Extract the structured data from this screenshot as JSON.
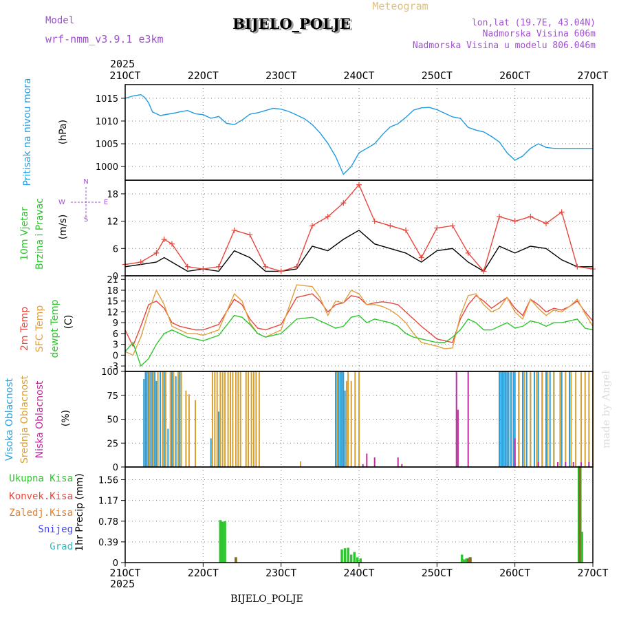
{
  "header": {
    "model_label": "Model",
    "model_name": "wrf-nmm_v3.9.1  e3km",
    "title": "BIJELO_POLJE",
    "subtitle": "Meteogram",
    "lonlat": "lon,lat (19.7E, 43.04N)",
    "elevation": "Nadmorska Visina 606m",
    "model_elevation": "Nadmorska Visina u modelu 806.046m",
    "credit": "made by Angel",
    "footer_station": "BIJELO_POLJE",
    "year": "2025"
  },
  "colors": {
    "pressure": "#1f9be0",
    "temp2m": "#e8453c",
    "sfctemp": "#e0a040",
    "dewpoint": "#2ec52e",
    "wind_speed": "#000000",
    "gust": "#e8453c",
    "high_cloud": "#2a9fd8",
    "mid_cloud": "#d9a030",
    "low_cloud": "#c02ca0",
    "precip_total": "#2ec52e",
    "precip_conv": "#e8453c",
    "precip_frozen": "#e08030",
    "snow": "#4040ff",
    "graupel": "#30c0c0",
    "purple_text": "#a050d0",
    "orange_text": "#e0c080"
  },
  "chart_data": [
    {
      "type": "line",
      "panel": "pressure",
      "ylabel_main": "Pritisak na nivou mora",
      "ylabel_unit": "(hPa)",
      "ylim": [
        997,
        1018
      ],
      "yticks": [
        1000,
        1005,
        1010,
        1015
      ],
      "ytick_labels": [
        "1000",
        "1005",
        "1010",
        "1015"
      ],
      "series": [
        {
          "name": "Pritisak na nivou mora",
          "x": [
            0,
            0.1,
            0.2,
            0.25,
            0.3,
            0.35,
            0.45,
            0.55,
            0.65,
            0.7,
            0.8,
            0.9,
            1.0,
            1.1,
            1.15,
            1.2,
            1.3,
            1.4,
            1.5,
            1.6,
            1.7,
            1.8,
            1.9,
            2.0,
            2.1,
            2.2,
            2.3,
            2.4,
            2.5,
            2.6,
            2.7,
            2.8,
            2.9,
            3.0,
            3.1,
            3.2,
            3.3,
            3.4,
            3.5,
            3.6,
            3.7,
            3.8,
            3.9,
            4.0,
            4.1,
            4.2,
            4.3,
            4.4,
            4.5,
            4.6,
            4.7,
            4.8,
            4.9,
            5.0,
            5.1,
            5.2,
            5.3,
            5.4,
            5.5,
            5.6,
            5.7,
            5.8,
            5.9,
            6.0
          ],
          "values": [
            1015,
            1015.5,
            1015.8,
            1015.2,
            1014,
            1012,
            1011.2,
            1011.5,
            1011.8,
            1012,
            1012.3,
            1011.6,
            1011.4,
            1010.6,
            1010.8,
            1011,
            1009.5,
            1009.2,
            1010.2,
            1011.5,
            1011.8,
            1012.3,
            1012.8,
            1012.6,
            1012.1,
            1011.3,
            1010.5,
            1009.2,
            1007.4,
            1005.1,
            1002.2,
            998.3,
            1000,
            1003,
            1004,
            1005,
            1007,
            1008.7,
            1009.4,
            1010.8,
            1012.4,
            1012.9,
            1013,
            1012.5,
            1011.7,
            1010.9,
            1010.6,
            1008.6,
            1008,
            1007.6,
            1006.6,
            1005.4,
            1003,
            1001.4,
            1002.3,
            1004,
            1005,
            1004.2,
            1004,
            1004,
            1004,
            1004,
            1004,
            1004
          ]
        }
      ]
    },
    {
      "type": "line",
      "panel": "wind",
      "ylabel_main": "10m Vjetar",
      "ylabel_sub": "Brzina i Pravac",
      "ylabel_unit": "(m/s)",
      "compass": {
        "n": "N",
        "w": "W",
        "e": "E",
        "s": "S"
      },
      "ylim": [
        0,
        21
      ],
      "yticks": [
        0,
        6,
        12,
        18
      ],
      "ytick_labels": [
        "0",
        "6",
        "12",
        "18"
      ],
      "series": [
        {
          "name": "Brzina",
          "x": [
            0,
            0.2,
            0.4,
            0.5,
            0.6,
            0.8,
            1.0,
            1.2,
            1.4,
            1.6,
            1.8,
            2.0,
            2.2,
            2.4,
            2.6,
            2.8,
            3.0,
            3.2,
            3.4,
            3.6,
            3.8,
            4.0,
            4.2,
            4.4,
            4.6,
            4.8,
            5.0,
            5.2,
            5.4,
            5.6,
            5.8,
            6.0
          ],
          "values": [
            2,
            2.5,
            3,
            4,
            3,
            1,
            1.5,
            1,
            5.5,
            4,
            1,
            1,
            1.5,
            6.5,
            5.5,
            8,
            10,
            7,
            6,
            5,
            3,
            5.5,
            6,
            3,
            1,
            6.5,
            5,
            6.5,
            6,
            3.5,
            2,
            2
          ]
        },
        {
          "name": "Udari",
          "x": [
            0,
            0.2,
            0.4,
            0.5,
            0.6,
            0.8,
            1.0,
            1.2,
            1.4,
            1.6,
            1.8,
            2.0,
            2.2,
            2.4,
            2.6,
            2.8,
            3.0,
            3.2,
            3.4,
            3.6,
            3.8,
            4.0,
            4.2,
            4.4,
            4.6,
            4.8,
            5.0,
            5.2,
            5.4,
            5.6,
            5.8,
            6.0
          ],
          "values": [
            2.5,
            3,
            5,
            8,
            7,
            2,
            1.5,
            2,
            10,
            9,
            2,
            1,
            2,
            11,
            13,
            16,
            20,
            12,
            11,
            10,
            4,
            10.5,
            11,
            5,
            1,
            13,
            12,
            13,
            11.5,
            14,
            2,
            1.5
          ]
        }
      ]
    },
    {
      "type": "line",
      "panel": "temperature",
      "ylabel_main": "2m Temp",
      "ylabel_sub": "SFC Temp",
      "ylabel_sub2": "dewpt Temp",
      "ylabel_unit": "(C)",
      "ylim": [
        -4.5,
        22
      ],
      "yticks": [
        -3,
        0,
        3,
        6,
        9,
        12,
        15,
        18,
        21
      ],
      "ytick_labels": [
        "-3",
        "0",
        "3",
        "6",
        "9",
        "12",
        "15",
        "18",
        "21"
      ],
      "x": [
        0,
        0.1,
        0.2,
        0.3,
        0.4,
        0.5,
        0.6,
        0.7,
        0.8,
        0.9,
        1.0,
        1.2,
        1.4,
        1.5,
        1.6,
        1.7,
        1.8,
        2.0,
        2.2,
        2.4,
        2.5,
        2.6,
        2.7,
        2.8,
        2.9,
        3.0,
        3.1,
        3.2,
        3.3,
        3.4,
        3.5,
        3.6,
        3.7,
        3.8,
        4.0,
        4.1,
        4.2,
        4.3,
        4.4,
        4.5,
        4.6,
        4.7,
        4.8,
        4.9,
        5.0,
        5.1,
        5.2,
        5.3,
        5.4,
        5.5,
        5.6,
        5.7,
        5.8,
        5.9,
        6.0
      ],
      "series": [
        {
          "name": "2m Temp",
          "values": [
            7,
            2.5,
            8,
            14,
            15,
            13,
            9,
            8,
            7.5,
            7,
            7,
            8.5,
            15.5,
            14,
            10,
            7.5,
            7,
            8.5,
            16,
            17,
            15,
            12,
            14,
            14.5,
            16.5,
            16,
            14,
            14.5,
            14.8,
            14.5,
            14,
            12,
            10,
            8,
            4.5,
            4,
            3.5,
            10,
            14,
            16.5,
            15,
            13,
            14.5,
            16,
            13,
            11,
            15.5,
            14,
            12,
            13,
            12.5,
            13.5,
            15,
            12,
            9.5
          ]
        },
        {
          "name": "SFC Temp",
          "values": [
            1,
            0,
            5,
            12,
            18,
            14,
            8,
            7,
            6,
            6,
            5.5,
            7,
            17,
            15,
            9,
            6,
            5,
            7,
            19.5,
            19,
            16,
            11,
            15,
            14.5,
            18,
            17,
            14,
            14,
            13.5,
            12.5,
            11,
            9,
            6,
            3.5,
            2.5,
            1.8,
            2,
            11,
            16.5,
            17,
            14,
            12,
            13,
            16,
            12,
            10,
            15.5,
            13,
            11,
            12.5,
            12,
            13.5,
            15.5,
            11.5,
            8
          ]
        },
        {
          "name": "dewpt Temp",
          "values": [
            1,
            3.5,
            -3,
            -1,
            3,
            6,
            7,
            6,
            5,
            4.5,
            4,
            5.5,
            11,
            10.5,
            8.5,
            6,
            5,
            6,
            10,
            10.5,
            9.5,
            8.5,
            7.5,
            8,
            10.5,
            11,
            9,
            10,
            9.5,
            9,
            8,
            6,
            5,
            4.5,
            3.5,
            3.5,
            5,
            7,
            10,
            9,
            7,
            7,
            8,
            9,
            7.5,
            8,
            9.5,
            9,
            8,
            9,
            9,
            9.5,
            10,
            7.5,
            7
          ]
        }
      ]
    },
    {
      "type": "bar",
      "panel": "clouds",
      "ylabel_main": "Visoka Oblacnost",
      "ylabel_sub": "Srednja Oblacnost",
      "ylabel_sub2": "Niska Oblacnost",
      "ylabel_unit": "(%)",
      "ylim": [
        0,
        100
      ],
      "yticks": [
        0,
        25,
        50,
        75,
        100
      ],
      "ytick_labels": [
        "0",
        "25",
        "50",
        "75",
        "100"
      ],
      "series": [
        {
          "name": "Visoka Oblacnost",
          "x": [
            0.24,
            0.26,
            0.28,
            0.3,
            0.33,
            0.35,
            0.38,
            0.4,
            0.45,
            0.5,
            0.55,
            0.6,
            0.65,
            0.7,
            1.1,
            1.2,
            2.7,
            2.72,
            2.74,
            2.76,
            2.78,
            2.8,
            2.82,
            4.8,
            4.82,
            4.84,
            4.86,
            4.88,
            4.9,
            4.92,
            4.95,
            4.98,
            5.0,
            5.05,
            5.1,
            5.15,
            5.2,
            5.25,
            5.3,
            5.35,
            5.4,
            5.45,
            5.5,
            5.6,
            5.7
          ],
          "values": [
            92,
            100,
            100,
            100,
            100,
            100,
            100,
            90,
            100,
            100,
            40,
            100,
            95,
            100,
            30,
            58,
            100,
            100,
            100,
            100,
            100,
            100,
            80,
            100,
            100,
            100,
            100,
            100,
            100,
            100,
            100,
            100,
            100,
            100,
            100,
            100,
            100,
            100,
            100,
            100,
            100,
            100,
            100,
            100,
            100
          ]
        },
        {
          "name": "Srednja Oblacnost",
          "x": [
            0.31,
            0.36,
            0.42,
            0.48,
            0.52,
            0.58,
            0.62,
            0.68,
            0.72,
            0.78,
            0.82,
            0.9,
            1.12,
            1.15,
            1.18,
            1.22,
            1.25,
            1.28,
            1.32,
            1.35,
            1.38,
            1.42,
            1.45,
            1.48,
            1.55,
            1.58,
            1.62,
            1.65,
            1.68,
            1.72,
            2.25,
            2.72,
            2.84,
            2.86,
            2.9,
            2.95,
            3.0,
            5.05,
            5.12,
            5.2,
            5.28,
            5.35,
            5.42,
            5.5,
            5.58,
            5.65,
            5.72,
            5.78,
            5.85,
            5.9,
            5.95,
            6.0
          ],
          "values": [
            100,
            100,
            100,
            100,
            100,
            100,
            100,
            100,
            100,
            80,
            76,
            70,
            100,
            100,
            100,
            100,
            100,
            100,
            100,
            100,
            100,
            100,
            100,
            100,
            100,
            100,
            100,
            100,
            100,
            100,
            6,
            100,
            90,
            100,
            90,
            100,
            100,
            100,
            100,
            100,
            100,
            100,
            100,
            100,
            100,
            100,
            100,
            100,
            100,
            100,
            100,
            100
          ]
        },
        {
          "name": "Niska Oblacnost",
          "x": [
            3.05,
            3.1,
            3.2,
            3.5,
            3.55,
            4.25,
            4.27,
            4.4,
            5.0,
            5.3,
            5.55,
            5.65,
            5.75,
            5.85,
            5.95
          ],
          "values": [
            3,
            14,
            10,
            10,
            3,
            100,
            60,
            100,
            30,
            5,
            5,
            5,
            5,
            5,
            5
          ]
        }
      ]
    },
    {
      "type": "bar",
      "panel": "precip",
      "ylabel_main": "1hr Precip (mm)",
      "legend": [
        "Ukupna Kisa",
        "Konvek.Kisa",
        "Zaledj.Kisa",
        "Snijeg",
        "Grad"
      ],
      "ylim": [
        0,
        1.8
      ],
      "yticks": [
        0,
        0.39,
        0.78,
        1.17,
        1.56
      ],
      "ytick_labels": [
        "0",
        "0.39",
        "0.78",
        "1.17",
        "1.56"
      ],
      "series": [
        {
          "name": "Ukupna Kisa",
          "x": [
            1.22,
            1.25,
            1.28,
            1.42,
            2.78,
            2.82,
            2.86,
            2.9,
            2.94,
            2.98,
            3.02,
            4.32,
            4.35,
            4.38,
            4.42,
            5.82,
            5.84,
            5.86
          ],
          "values": [
            0.8,
            0.77,
            0.78,
            0.1,
            0.25,
            0.27,
            0.28,
            0.15,
            0.2,
            0.1,
            0.08,
            0.15,
            0.06,
            0.08,
            0.1,
            1.82,
            1.82,
            0.58
          ]
        },
        {
          "name": "Zaledj.Kisa",
          "x": [
            1.42,
            4.4,
            4.43,
            5.83
          ],
          "values": [
            0.1,
            0.08,
            0.1,
            1.8
          ]
        }
      ]
    }
  ],
  "x_axis": {
    "dates": [
      "21OCT",
      "22OCT",
      "23OCT",
      "24OCT",
      "25OCT",
      "26OCT",
      "27OCT"
    ],
    "year": "2025"
  }
}
